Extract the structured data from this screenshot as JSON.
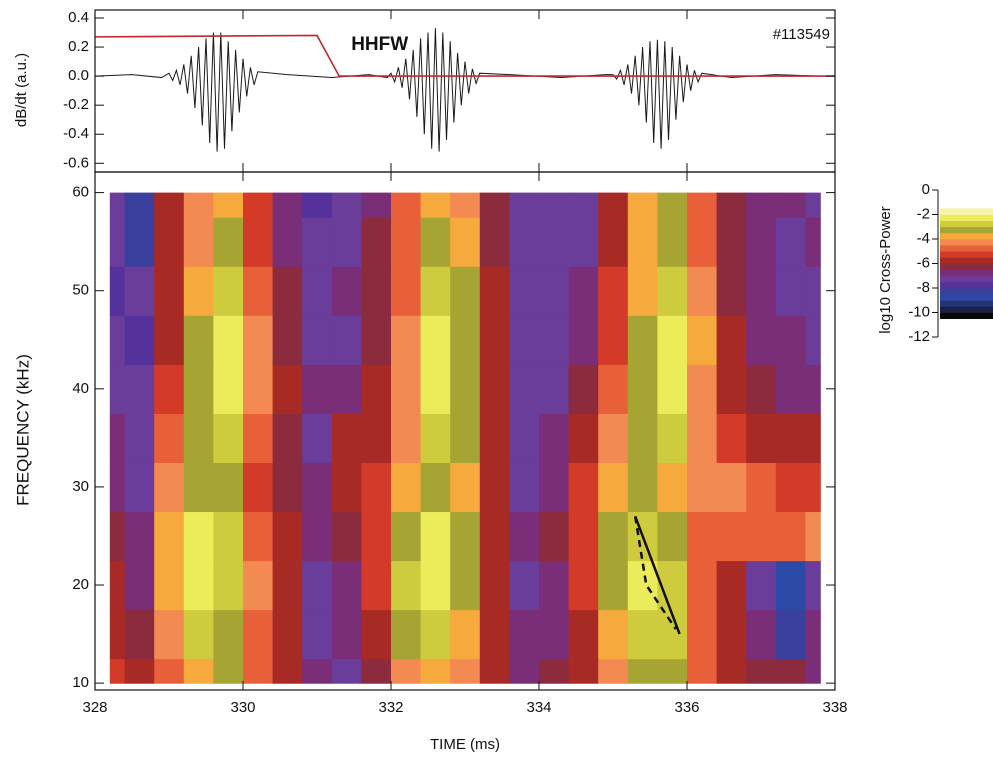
{
  "chart_data": [
    {
      "type": "line",
      "ylabel": "dB/dt (a.u.)",
      "annotation": "#113549",
      "xlim": [
        328,
        338
      ],
      "ylim": [
        -0.66,
        0.455
      ],
      "yticks": [
        -0.6,
        -0.4,
        -0.2,
        {
          "value": 0,
          "label": "0.0"
        },
        0.2,
        0.4
      ],
      "series": [
        {
          "color": "#1a1a1a",
          "x": [
            328.0,
            328.5,
            328.9,
            329.0,
            329.05,
            329.1,
            329.15,
            329.2,
            329.25,
            329.3,
            329.35,
            329.4,
            329.45,
            329.5,
            329.55,
            329.6,
            329.65,
            329.7,
            329.75,
            329.8,
            329.85,
            329.9,
            329.95,
            330.0,
            330.05,
            330.1,
            330.15,
            330.2,
            330.6,
            331.2,
            331.7,
            331.95,
            332.0,
            332.05,
            332.1,
            332.15,
            332.2,
            332.25,
            332.3,
            332.35,
            332.4,
            332.45,
            332.5,
            332.55,
            332.6,
            332.65,
            332.7,
            332.75,
            332.8,
            332.85,
            332.9,
            332.95,
            333.0,
            333.05,
            333.1,
            333.15,
            333.2,
            333.6,
            334.3,
            334.9,
            335.0,
            335.05,
            335.1,
            335.15,
            335.2,
            335.25,
            335.3,
            335.35,
            335.4,
            335.45,
            335.5,
            335.55,
            335.6,
            335.65,
            335.7,
            335.75,
            335.8,
            335.85,
            335.9,
            335.95,
            336.0,
            336.05,
            336.1,
            336.15,
            336.2,
            336.6,
            337.2,
            337.8
          ],
          "values": [
            0,
            0.01,
            -0.01,
            0.02,
            -0.03,
            0.04,
            -0.06,
            0.08,
            -0.12,
            0.14,
            -0.22,
            0.2,
            -0.34,
            0.26,
            -0.46,
            0.3,
            -0.52,
            0.3,
            -0.5,
            0.24,
            -0.38,
            0.18,
            -0.25,
            0.12,
            -0.14,
            0.06,
            -0.06,
            0.03,
            0.01,
            -0.01,
            0.01,
            -0.01,
            0.02,
            -0.04,
            0.06,
            -0.08,
            0.12,
            -0.16,
            0.18,
            -0.28,
            0.26,
            -0.4,
            0.3,
            -0.5,
            0.33,
            -0.52,
            0.3,
            -0.44,
            0.24,
            -0.32,
            0.16,
            -0.2,
            0.1,
            -0.12,
            0.05,
            -0.05,
            0.02,
            0.01,
            -0.01,
            0.01,
            0.01,
            -0.02,
            0.04,
            -0.06,
            0.08,
            -0.12,
            0.14,
            -0.2,
            0.2,
            -0.32,
            0.24,
            -0.46,
            0.25,
            -0.5,
            0.24,
            -0.44,
            0.2,
            -0.3,
            0.14,
            -0.18,
            0.08,
            -0.1,
            0.04,
            -0.04,
            0.02,
            -0.01,
            0.01,
            0
          ]
        },
        {
          "name": "HHFW",
          "color": "#c0282e",
          "x": [
            328,
            331,
            331.3,
            338
          ],
          "values": [
            0.27,
            0.28,
            0,
            0
          ]
        }
      ]
    },
    {
      "type": "heatmap",
      "xlabel": "TIME (ms)",
      "ylabel": "FREQUENCY (kHz)",
      "xlim": [
        328,
        338
      ],
      "xticks": [
        328,
        330,
        332,
        334,
        336,
        338
      ],
      "ylim": [
        9.3,
        62.1
      ],
      "yticks": [
        10,
        20,
        30,
        40,
        50,
        60
      ],
      "x": [
        328.2,
        328.6,
        329.0,
        329.4,
        329.8,
        330.2,
        330.6,
        331.0,
        331.4,
        331.8,
        332.2,
        332.6,
        333.0,
        333.4,
        333.8,
        334.2,
        334.6,
        335.0,
        335.4,
        335.8,
        336.2,
        336.6,
        337.0,
        337.4,
        337.8
      ],
      "y": [
        10,
        15,
        20,
        25,
        30,
        35,
        40,
        45,
        50,
        55,
        60
      ],
      "z": [
        [
          -5.5,
          -6,
          -5,
          -3.8,
          -3.5,
          -5,
          -6,
          -7,
          -7.5,
          -6.5,
          -4.5,
          -3.8,
          -4.5,
          -6,
          -7,
          -6.5,
          -6,
          -4.5,
          -3.5,
          -3.5,
          -5,
          -6,
          -6.5,
          -6.5,
          -7
        ],
        [
          -6,
          -6.5,
          -4.5,
          -3,
          -3.2,
          -5,
          -6,
          -7.5,
          -7,
          -6,
          -3.5,
          -3,
          -4,
          -6,
          -7,
          -7,
          -6,
          -4,
          -3,
          -2.8,
          -5,
          -6,
          -7,
          -8.5,
          -7
        ],
        [
          -6,
          -7,
          -4,
          -2.2,
          -2.8,
          -4.5,
          -6,
          -7.5,
          -7,
          -5.5,
          -3,
          -2.2,
          -3.5,
          -6,
          -7.5,
          -7,
          -5.5,
          -3.5,
          -2.5,
          -3,
          -5,
          -6,
          -7.5,
          -9,
          -7.5
        ],
        [
          -6.5,
          -7,
          -4,
          -2.5,
          -3,
          -5,
          -6,
          -7,
          -6.5,
          -5.5,
          -3.2,
          -2.5,
          -3.5,
          -6,
          -7,
          -6.5,
          -5.5,
          -3.5,
          -2.8,
          -3.5,
          -5,
          -5,
          -5,
          -4.8,
          -4.5
        ],
        [
          -7,
          -7.5,
          -4.5,
          -3.2,
          -3.5,
          -5.5,
          -6.5,
          -7,
          -6,
          -5.5,
          -4,
          -3.2,
          -4,
          -6,
          -7.5,
          -7,
          -5.5,
          -4,
          -3.5,
          -4,
          -4.5,
          -4.5,
          -5,
          -5.5,
          -5.5
        ],
        [
          -7,
          -7.5,
          -5,
          -3.5,
          -3,
          -5,
          -6.5,
          -7.5,
          -6,
          -6,
          -4.5,
          -3,
          -3.5,
          -6,
          -7.5,
          -7,
          -6,
          -4.5,
          -3.5,
          -3,
          -4.5,
          -5.5,
          -6,
          -6,
          -6
        ],
        [
          -7.5,
          -7.5,
          -5.5,
          -3.5,
          -2.2,
          -4.5,
          -6,
          -7,
          -7,
          -6,
          -4.5,
          -2.5,
          -3.2,
          -6,
          -7.5,
          -7.5,
          -6.5,
          -5,
          -3.5,
          -2.5,
          -4.5,
          -6,
          -6.5,
          -7,
          -7
        ],
        [
          -7.5,
          -8,
          -6,
          -3.5,
          -2.5,
          -4.5,
          -6.5,
          -7.5,
          -7.5,
          -6.5,
          -4.5,
          -2.5,
          -3.2,
          -6,
          -7.5,
          -7.5,
          -7,
          -5.5,
          -3.5,
          -2.2,
          -4,
          -6,
          -7,
          -7,
          -7.5
        ],
        [
          -8,
          -7.5,
          -6,
          -4,
          -3,
          -5,
          -6.5,
          -7.5,
          -7,
          -6.5,
          -5,
          -3,
          -3.5,
          -6,
          -7.5,
          -7.5,
          -7,
          -5.5,
          -4,
          -3,
          -4.5,
          -6.5,
          -7,
          -7.5,
          -7.5
        ],
        [
          -7.5,
          -8.5,
          -6,
          -4.5,
          -3.5,
          -5.5,
          -7,
          -7.5,
          -7.5,
          -6.5,
          -5,
          -3.5,
          -4,
          -6.5,
          -7.5,
          -7.5,
          -7.5,
          -6,
          -4,
          -3.5,
          -5,
          -6.5,
          -7,
          -7.5,
          -7
        ],
        [
          -7.5,
          -8.5,
          -6,
          -4.5,
          -4,
          -5.5,
          -7,
          -8,
          -7.5,
          -7,
          -5,
          -4,
          -4.5,
          -6.5,
          -7.5,
          -7.5,
          -7.5,
          -6,
          -4,
          -3.5,
          -5,
          -6.5,
          -7,
          -7,
          -7.5
        ]
      ],
      "lines": [
        {
          "x": [
            335.3,
            335.9
          ],
          "y": [
            27,
            15
          ],
          "dash": false
        },
        {
          "x": [
            335.3,
            335.45,
            335.85
          ],
          "y": [
            27,
            20,
            15.5
          ],
          "dash": true
        }
      ],
      "colorbar": {
        "label": "log10 Cross-Power",
        "lim": [
          -12,
          0
        ],
        "ticks": [
          0,
          -2,
          -4,
          -6,
          -8,
          -10,
          -12
        ],
        "levels": [
          -10.5,
          -10,
          -9.5,
          -9,
          -8.5,
          -8,
          -7.5,
          -7,
          -6.5,
          -6,
          -5.5,
          -5,
          -4.5,
          -4,
          -3.5,
          -3,
          -2.5,
          -2,
          -1.5
        ],
        "colors": [
          "#0a0a0a",
          "#1c2040",
          "#24347a",
          "#2d49a6",
          "#3b3f9e",
          "#55319b",
          "#6a3d9a",
          "#7b2e78",
          "#8c2a3e",
          "#a82a25",
          "#d43a28",
          "#e8603a",
          "#f28a52",
          "#f6a93c",
          "#a6a534",
          "#cfcb3e",
          "#eceb5a",
          "#f6f3a8"
        ]
      }
    }
  ]
}
